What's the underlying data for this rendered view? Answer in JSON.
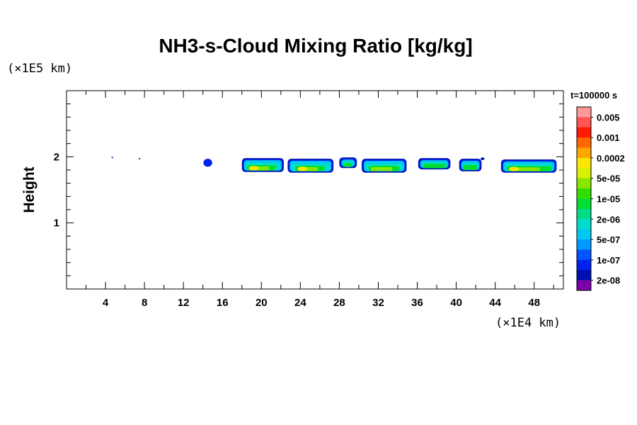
{
  "chart_data": {
    "type": "heatmap",
    "title": "NH3-s-Cloud Mixing Ratio [kg/kg]",
    "xlabel": "",
    "ylabel": "Height",
    "x_scale_label": "(×1E4 km)",
    "y_scale_label": "(×1E5 km)",
    "xlim": [
      0,
      51
    ],
    "ylim": [
      0,
      3
    ],
    "x_ticks": [
      4,
      8,
      12,
      16,
      20,
      24,
      28,
      32,
      36,
      40,
      44,
      48
    ],
    "y_ticks": [
      1,
      2
    ],
    "time_label": "t=100000 s",
    "grid": false,
    "legend": "right",
    "colorbar": {
      "labels": [
        "0.005",
        "0.001",
        "0.0002",
        "5e-05",
        "1e-05",
        "2e-06",
        "5e-07",
        "1e-07",
        "2e-08"
      ],
      "colors": [
        "#ff9999",
        "#ff5555",
        "#ff1a00",
        "#ff6600",
        "#ffa500",
        "#ffe600",
        "#d7f200",
        "#88e600",
        "#33dd00",
        "#00dd33",
        "#00dd88",
        "#00ddcc",
        "#00c8f0",
        "#0099ff",
        "#0055ff",
        "#0022ee",
        "#0010b0",
        "#7a00aa"
      ]
    },
    "cloud_regions": [
      {
        "x0": 18.0,
        "x1": 22.3,
        "y0": 1.77,
        "y1": 1.98,
        "core_x": [
          18.5,
          21.5
        ],
        "level": "5e-05"
      },
      {
        "x0": 22.7,
        "x1": 27.4,
        "y0": 1.76,
        "y1": 1.97,
        "core_x": [
          23.5,
          26.5
        ],
        "level": "5e-05"
      },
      {
        "x0": 28.0,
        "x1": 29.8,
        "y0": 1.83,
        "y1": 1.99,
        "core_x": [
          28.4,
          29.3
        ],
        "level": "2e-06"
      },
      {
        "x0": 30.3,
        "x1": 34.9,
        "y0": 1.76,
        "y1": 1.97,
        "core_x": [
          31.0,
          34.2
        ],
        "level": "1e-05"
      },
      {
        "x0": 36.1,
        "x1": 39.4,
        "y0": 1.81,
        "y1": 1.98,
        "core_x": [
          36.6,
          39.0
        ],
        "level": "2e-06"
      },
      {
        "x0": 40.3,
        "x1": 42.6,
        "y0": 1.78,
        "y1": 1.97,
        "core_x": [
          40.7,
          42.2
        ],
        "level": "2e-06"
      },
      {
        "x0": 44.6,
        "x1": 50.3,
        "y0": 1.76,
        "y1": 1.96,
        "core_x": [
          45.2,
          49.8
        ],
        "level": "5e-05"
      }
    ],
    "small_patches": [
      {
        "x": 14.5,
        "y": 1.91,
        "rx": 0.45,
        "ry": 0.06
      },
      {
        "x": 42.7,
        "y": 1.97,
        "rx": 0.2,
        "ry": 0.02
      },
      {
        "x": 4.7,
        "y": 1.99,
        "rx": 0.08,
        "ry": 0.01
      },
      {
        "x": 7.5,
        "y": 1.97,
        "rx": 0.08,
        "ry": 0.01
      }
    ]
  }
}
